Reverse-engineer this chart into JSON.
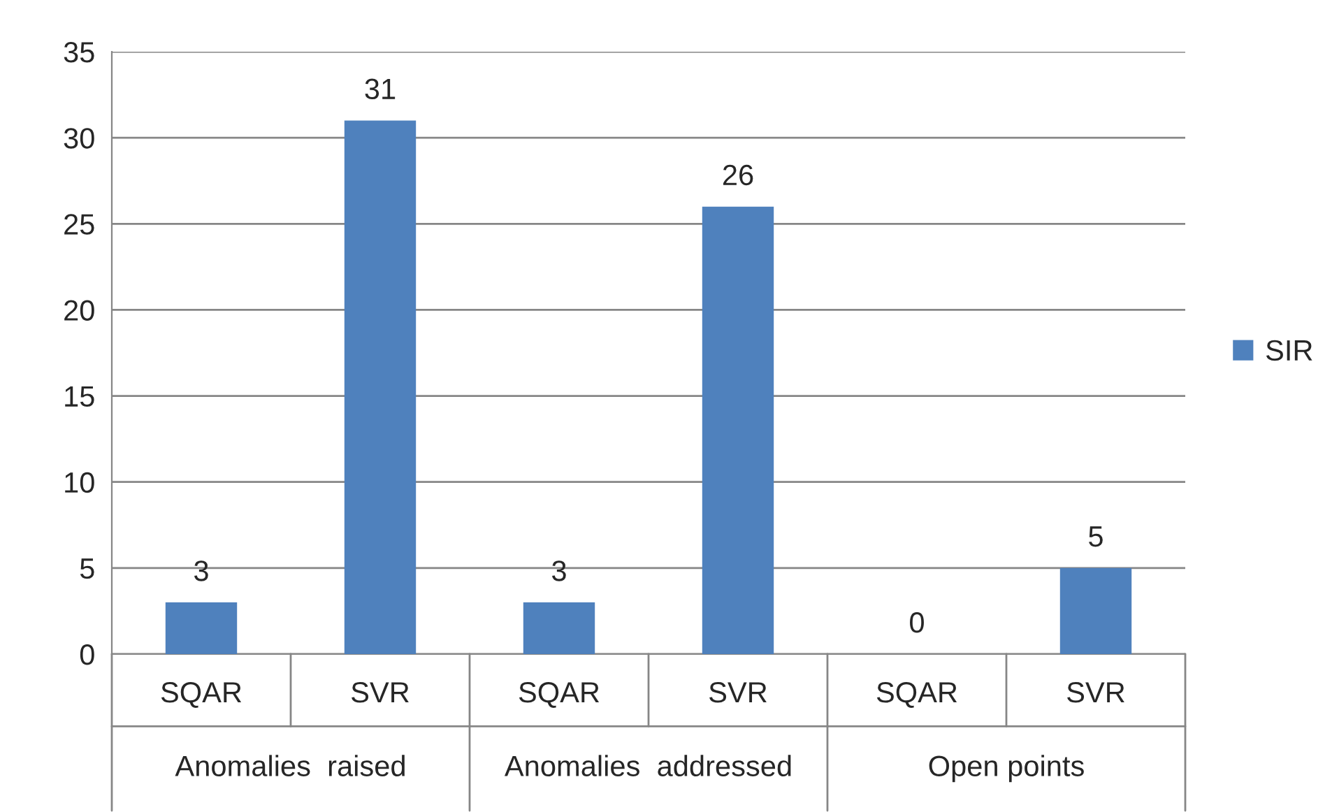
{
  "chart_data": {
    "type": "bar",
    "categories": [
      "SQAR",
      "SVR",
      "SQAR",
      "SVR",
      "SQAR",
      "SVR"
    ],
    "series": [
      {
        "name": "SIR",
        "color": "#4f81bd",
        "values": [
          3,
          31,
          3,
          26,
          0,
          5
        ]
      }
    ],
    "annotations": [
      "Anomalies  raised",
      "Anomalies  addressed",
      "Open points"
    ],
    "ylim": [
      0,
      35
    ],
    "yticks": [
      0,
      5,
      10,
      15,
      20,
      25,
      30,
      35
    ],
    "grid": "y",
    "legend": "right",
    "data_labels": true
  }
}
